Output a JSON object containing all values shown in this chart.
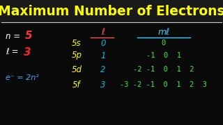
{
  "title": "Maximum Number of Electrons",
  "title_color": "#FFFF00",
  "title_fontsize": 13.5,
  "bg_color": "#111111",
  "line_color": "#CCCCCC",
  "n_color": "#FFFFFF",
  "n_val_color": "#FF3333",
  "l_color": "#FFFFFF",
  "l_val_color": "#FF2222",
  "e_color": "#44AAFF",
  "col1_header": "ℓ",
  "col1_header_color": "#FF5555",
  "col2_header": "mℓ",
  "col2_header_color": "#44CCFF",
  "row_labels": [
    "5s",
    "5p",
    "5d",
    "5f"
  ],
  "row_label_color": "#FFFF00",
  "l_vals": [
    "0",
    "1",
    "2",
    "3"
  ],
  "l_vals_color": "#00BBDD",
  "ml_vals_5s": "0",
  "ml_vals_5p": "-1  0  1",
  "ml_vals_5d": "-2 -1  0  1  2",
  "ml_vals_5f": "-3 -2 -1  0  1  2  3",
  "ml_color": "#44EE44",
  "bg_actual": "#0a0a0a"
}
